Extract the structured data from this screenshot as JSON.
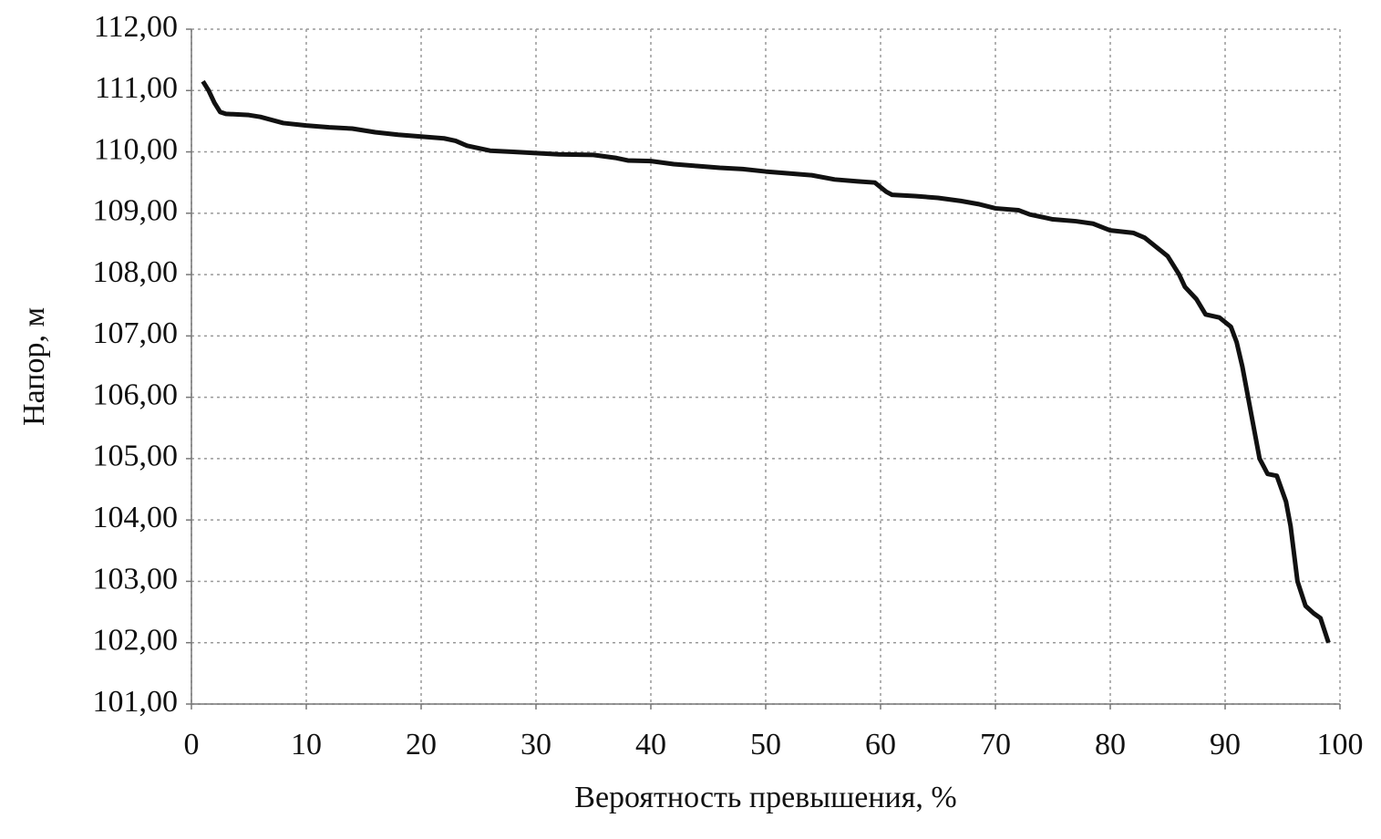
{
  "chart_data": {
    "type": "line",
    "x_label": "Вероятность превышения, %",
    "y_label": "Напор, м",
    "xlim": [
      0,
      100
    ],
    "xticks": [
      0,
      10,
      20,
      30,
      40,
      50,
      60,
      70,
      80,
      90,
      100
    ],
    "ylim": [
      101,
      112
    ],
    "yticks": [
      {
        "value": 101,
        "label": "101,00"
      },
      {
        "value": 102,
        "label": "102,00"
      },
      {
        "value": 103,
        "label": "103,00"
      },
      {
        "value": 104,
        "label": "104,00"
      },
      {
        "value": 105,
        "label": "105,00"
      },
      {
        "value": 106,
        "label": "106,00"
      },
      {
        "value": 107,
        "label": "107,00"
      },
      {
        "value": 108,
        "label": "108,00"
      },
      {
        "value": 109,
        "label": "109,00"
      },
      {
        "value": 110,
        "label": "110,00"
      },
      {
        "value": 111,
        "label": "111,00"
      },
      {
        "value": 112,
        "label": "112,00"
      }
    ],
    "grid": true,
    "color": "#111111",
    "x": [
      1,
      1.5,
      2,
      2.5,
      3,
      5,
      6,
      8,
      10,
      12,
      14,
      16,
      18,
      20,
      22,
      23,
      24,
      26,
      28,
      30,
      32,
      35,
      37,
      38,
      40,
      42,
      44,
      46,
      48,
      50,
      52,
      54,
      56,
      58,
      59.5,
      60.5,
      61,
      63,
      65,
      67,
      68.5,
      70,
      72,
      73,
      75,
      77,
      78.5,
      80,
      82,
      83,
      84,
      85,
      86,
      86.5,
      87.5,
      88.3,
      89.5,
      90.5,
      91,
      91.5,
      92,
      92.5,
      93,
      93.7,
      94.5,
      95.3,
      95.7,
      96.3,
      97,
      97.7,
      98.3,
      99
    ],
    "values": [
      111.15,
      111.0,
      110.8,
      110.65,
      110.62,
      110.6,
      110.57,
      110.47,
      110.43,
      110.4,
      110.38,
      110.32,
      110.28,
      110.25,
      110.22,
      110.18,
      110.1,
      110.02,
      110.0,
      109.98,
      109.96,
      109.95,
      109.9,
      109.86,
      109.85,
      109.8,
      109.77,
      109.74,
      109.72,
      109.68,
      109.65,
      109.62,
      109.55,
      109.52,
      109.5,
      109.35,
      109.3,
      109.28,
      109.25,
      109.2,
      109.15,
      109.08,
      109.05,
      108.98,
      108.9,
      108.87,
      108.83,
      108.72,
      108.68,
      108.6,
      108.45,
      108.3,
      108.0,
      107.8,
      107.6,
      107.35,
      107.3,
      107.15,
      106.9,
      106.5,
      106.0,
      105.5,
      105.0,
      104.75,
      104.72,
      104.3,
      103.9,
      103.0,
      102.6,
      102.48,
      102.4,
      102.0
    ]
  }
}
